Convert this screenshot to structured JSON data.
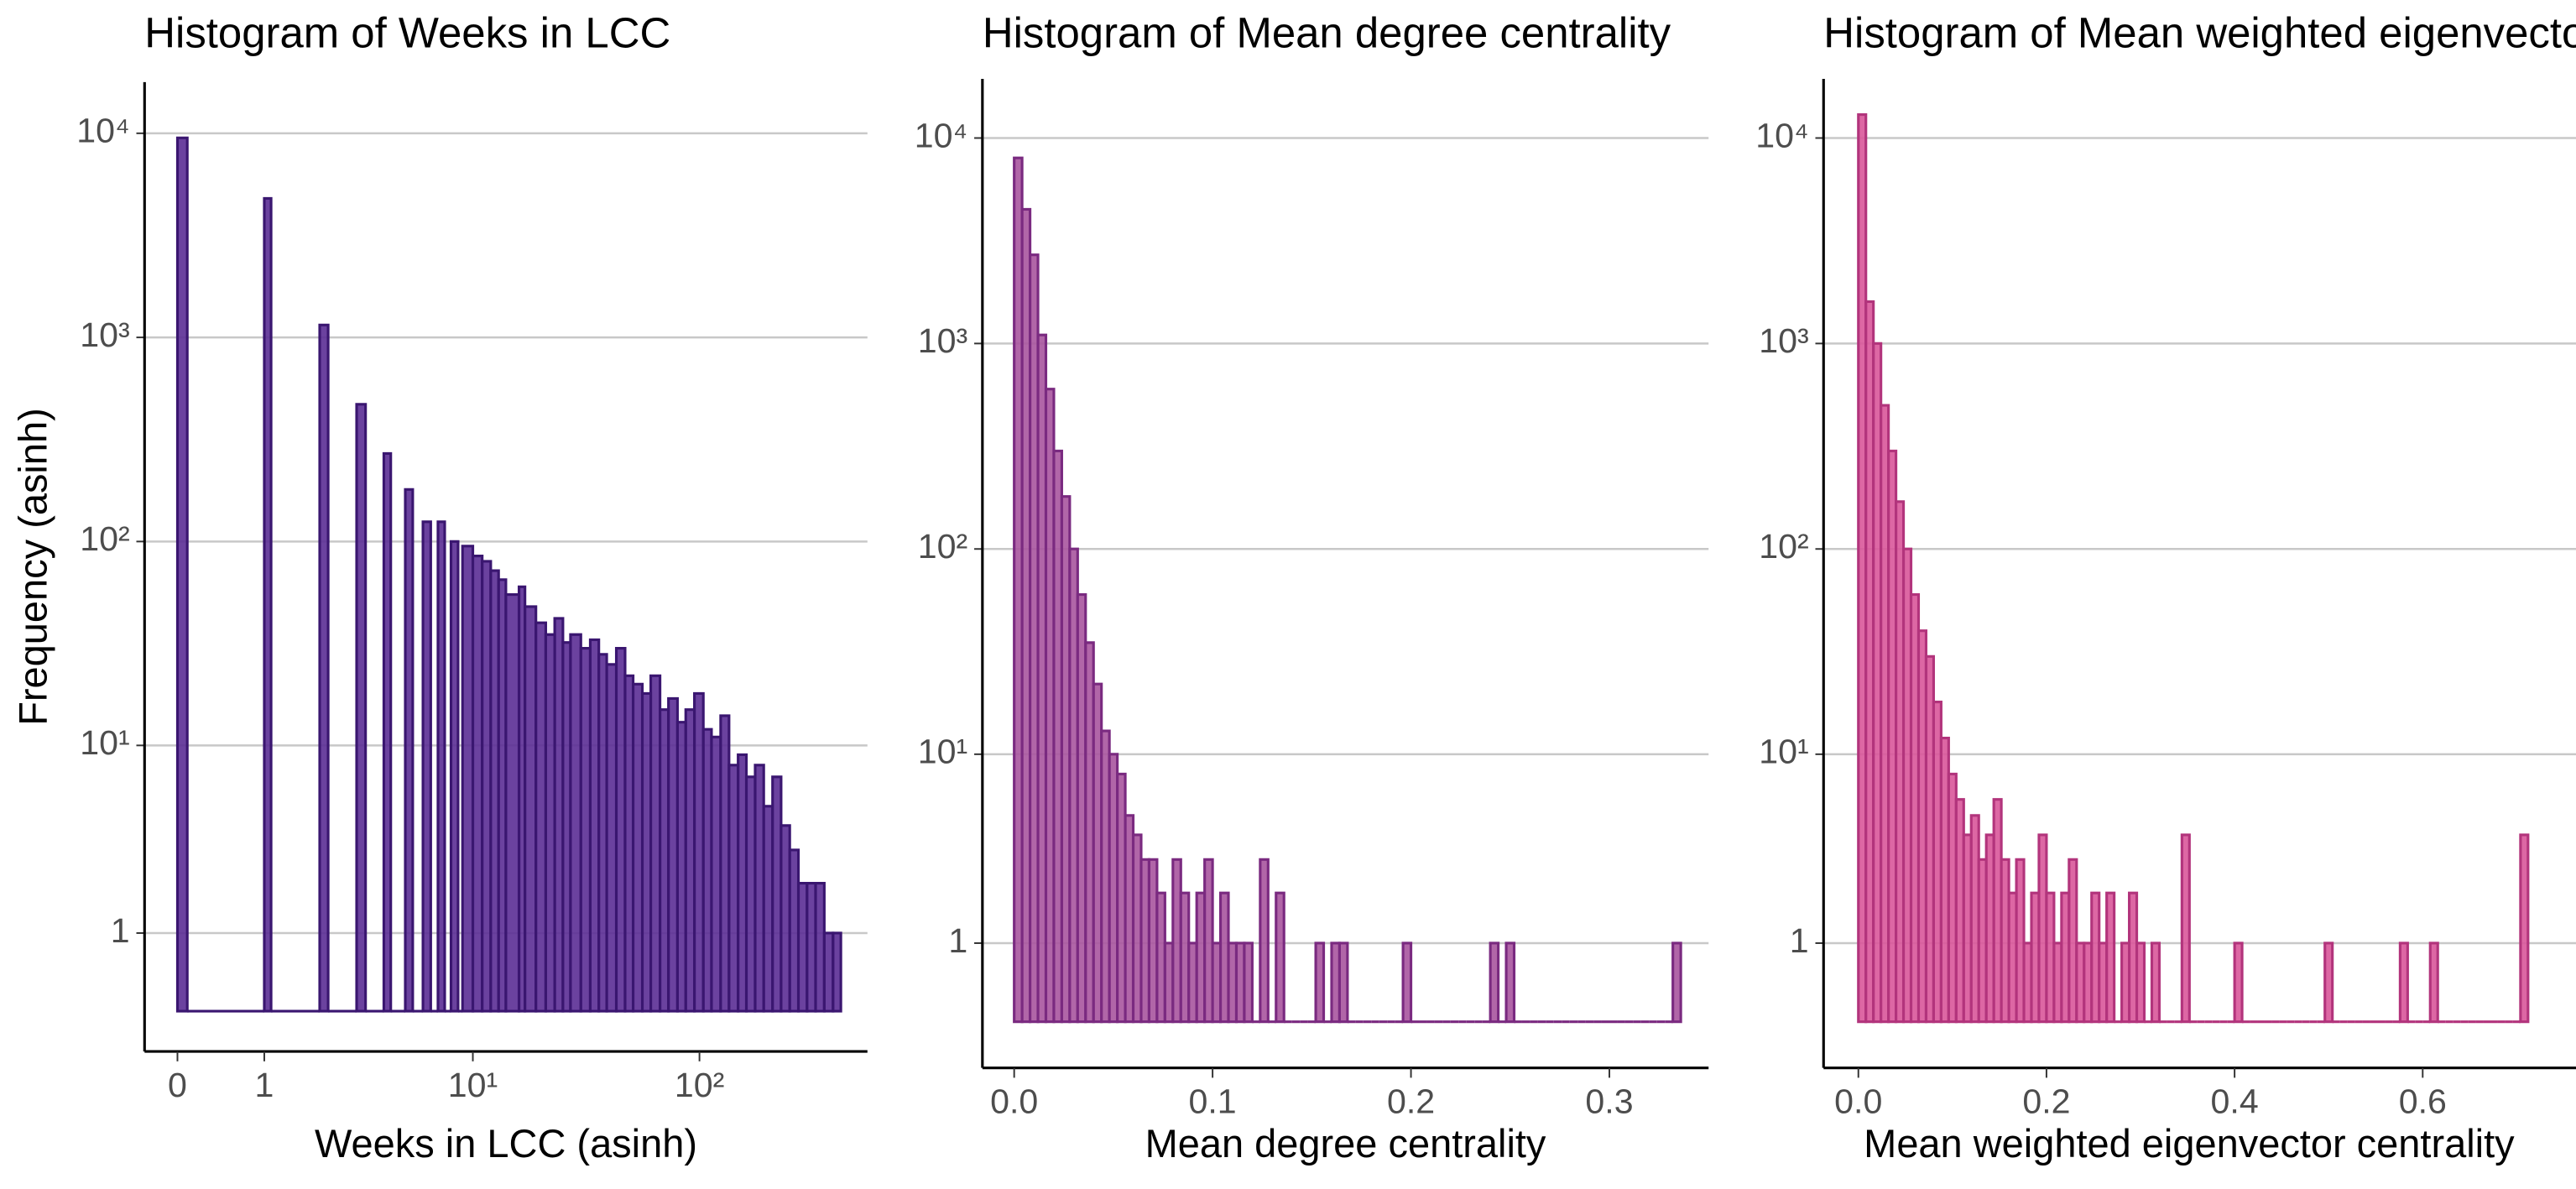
{
  "chart_data": [
    {
      "type": "histogram",
      "title": "Histogram of Weeks in LCC",
      "xlabel": "Weeks in LCC (asinh)",
      "ylabel": "Frequency (asinh)",
      "xscale": "asinh",
      "yscale": "asinh",
      "grid": "y",
      "color": "#5b2e95",
      "edgecolor": "#3a1670",
      "bins": [
        0,
        0.1,
        1,
        1.1,
        2,
        2.2,
        3,
        3.3,
        4,
        4.3,
        5,
        5.4,
        6,
        6.5,
        7,
        7.5,
        8,
        8.6,
        9,
        10,
        11,
        12,
        13,
        14,
        16,
        17,
        19,
        21,
        23,
        25,
        27,
        30,
        33,
        36,
        39,
        43,
        47,
        51,
        56,
        61,
        67,
        73,
        80,
        87,
        95,
        104,
        113,
        124,
        135,
        148,
        161,
        176,
        192,
        210,
        229,
        250,
        273,
        298,
        325,
        355,
        388,
        420
      ],
      "values": [
        9500,
        0,
        4800,
        0,
        1150,
        0,
        470,
        0,
        270,
        0,
        180,
        0,
        125,
        0,
        125,
        0,
        100,
        0,
        95,
        85,
        80,
        72,
        65,
        55,
        60,
        48,
        40,
        35,
        42,
        32,
        35,
        30,
        33,
        28,
        25,
        30,
        22,
        20,
        18,
        22,
        15,
        17,
        13,
        15,
        18,
        12,
        11,
        14,
        8,
        9,
        7,
        8,
        5,
        7,
        4,
        3,
        2,
        2,
        2,
        1,
        1
      ],
      "xlim": [
        -0.34,
        550
      ],
      "xticks": [
        0,
        1,
        {
          "value": 10,
          "label": "10¹"
        },
        {
          "value": 100,
          "label": "10²"
        }
      ],
      "ylim": [
        -0.47,
        17800
      ],
      "yticks": [
        1,
        {
          "value": 10,
          "label": "10¹"
        },
        {
          "value": 100,
          "label": "10²"
        },
        {
          "value": 1000,
          "label": "10³"
        },
        {
          "value": 10000,
          "label": "10⁴"
        }
      ]
    },
    {
      "type": "histogram",
      "title": "Histogram of Mean degree centrality",
      "xlabel": "Mean degree centrality",
      "xscale": "linear",
      "yscale": "asinh",
      "grid": "y",
      "color": "#a8559f",
      "edgecolor": "#7a2a80",
      "bins": [
        0,
        0.004,
        0.008,
        0.012,
        0.016,
        0.02,
        0.024,
        0.028,
        0.032,
        0.036,
        0.04,
        0.044,
        0.048,
        0.052,
        0.056,
        0.06,
        0.064,
        0.068,
        0.072,
        0.076,
        0.08,
        0.084,
        0.088,
        0.092,
        0.096,
        0.1,
        0.104,
        0.108,
        0.112,
        0.116,
        0.12,
        0.124,
        0.128,
        0.132,
        0.136,
        0.14,
        0.144,
        0.148,
        0.152,
        0.156,
        0.16,
        0.164,
        0.168,
        0.172,
        0.176,
        0.18,
        0.184,
        0.188,
        0.192,
        0.196,
        0.2,
        0.204,
        0.208,
        0.212,
        0.216,
        0.22,
        0.224,
        0.228,
        0.232,
        0.236,
        0.24,
        0.244,
        0.248,
        0.252,
        0.256,
        0.26,
        0.264,
        0.268,
        0.272,
        0.276,
        0.28,
        0.284,
        0.288,
        0.292,
        0.296,
        0.3,
        0.304,
        0.308,
        0.312,
        0.316,
        0.32,
        0.324,
        0.328,
        0.332,
        0.336
      ],
      "values": [
        8000,
        4500,
        2700,
        1100,
        600,
        300,
        180,
        100,
        60,
        35,
        22,
        13,
        10,
        8,
        5,
        4,
        3,
        3,
        2,
        1,
        3,
        2,
        1,
        2,
        3,
        1,
        2,
        1,
        1,
        1,
        0,
        3,
        0,
        2,
        0,
        0,
        0,
        0,
        1,
        0,
        1,
        1,
        0,
        0,
        0,
        0,
        0,
        0,
        0,
        1,
        0,
        0,
        0,
        0,
        0,
        0,
        0,
        0,
        0,
        0,
        1,
        0,
        1,
        0,
        0,
        0,
        0,
        0,
        0,
        0,
        0,
        0,
        0,
        0,
        0,
        0,
        0,
        0,
        0,
        0,
        0,
        0,
        0,
        1
      ],
      "xlim": [
        -0.016,
        0.35
      ],
      "xticks": [
        {
          "value": 0,
          "label": "0.0"
        },
        0.1,
        0.2,
        0.3
      ],
      "ylim": [
        -0.54,
        19400
      ],
      "yticks": [
        1,
        {
          "value": 10,
          "label": "10¹"
        },
        {
          "value": 100,
          "label": "10²"
        },
        {
          "value": 1000,
          "label": "10³"
        },
        {
          "value": 10000,
          "label": "10⁴"
        }
      ]
    },
    {
      "type": "histogram",
      "title": "Histogram of Mean weighted eigenvector centrality",
      "xlabel": "Mean weighted eigenvector centrality",
      "xscale": "linear",
      "yscale": "asinh",
      "grid": "y",
      "color": "#d9579a",
      "edgecolor": "#b2347c",
      "bins": [
        0,
        0.008,
        0.016,
        0.024,
        0.032,
        0.04,
        0.048,
        0.056,
        0.064,
        0.072,
        0.08,
        0.088,
        0.096,
        0.104,
        0.112,
        0.12,
        0.128,
        0.136,
        0.144,
        0.152,
        0.16,
        0.168,
        0.176,
        0.184,
        0.192,
        0.2,
        0.208,
        0.216,
        0.224,
        0.232,
        0.24,
        0.248,
        0.256,
        0.264,
        0.272,
        0.28,
        0.288,
        0.296,
        0.304,
        0.312,
        0.32,
        0.328,
        0.336,
        0.344,
        0.352,
        0.36,
        0.368,
        0.376,
        0.384,
        0.392,
        0.4,
        0.408,
        0.416,
        0.424,
        0.432,
        0.44,
        0.448,
        0.456,
        0.464,
        0.472,
        0.48,
        0.488,
        0.496,
        0.504,
        0.512,
        0.52,
        0.528,
        0.536,
        0.544,
        0.552,
        0.56,
        0.568,
        0.576,
        0.584,
        0.592,
        0.6,
        0.608,
        0.616,
        0.624,
        0.632,
        0.64,
        0.648,
        0.656,
        0.664,
        0.672,
        0.68,
        0.688,
        0.696,
        0.704,
        0.712
      ],
      "values": [
        13000,
        1600,
        1000,
        500,
        300,
        170,
        100,
        60,
        40,
        30,
        18,
        12,
        8,
        6,
        4,
        5,
        3,
        4,
        6,
        3,
        2,
        3,
        1,
        2,
        4,
        2,
        1,
        2,
        3,
        1,
        1,
        2,
        1,
        2,
        0,
        1,
        2,
        1,
        0,
        1,
        0,
        0,
        0,
        4,
        0,
        0,
        0,
        0,
        0,
        0,
        1,
        0,
        0,
        0,
        0,
        0,
        0,
        0,
        0,
        0,
        0,
        0,
        1,
        0,
        0,
        0,
        0,
        0,
        0,
        0,
        0,
        0,
        1,
        0,
        0,
        0,
        1,
        0,
        0,
        0,
        0,
        0,
        0,
        0,
        0,
        0,
        0,
        0,
        4
      ],
      "xlim": [
        -0.037,
        0.763
      ],
      "xticks": [
        {
          "value": 0,
          "label": "0.0"
        },
        0.2,
        0.4,
        0.6
      ],
      "ylim": [
        -0.54,
        19400
      ],
      "yticks": [
        1,
        {
          "value": 10,
          "label": "10¹"
        },
        {
          "value": 100,
          "label": "10²"
        },
        {
          "value": 1000,
          "label": "10³"
        },
        {
          "value": 10000,
          "label": "10⁴"
        }
      ]
    }
  ]
}
